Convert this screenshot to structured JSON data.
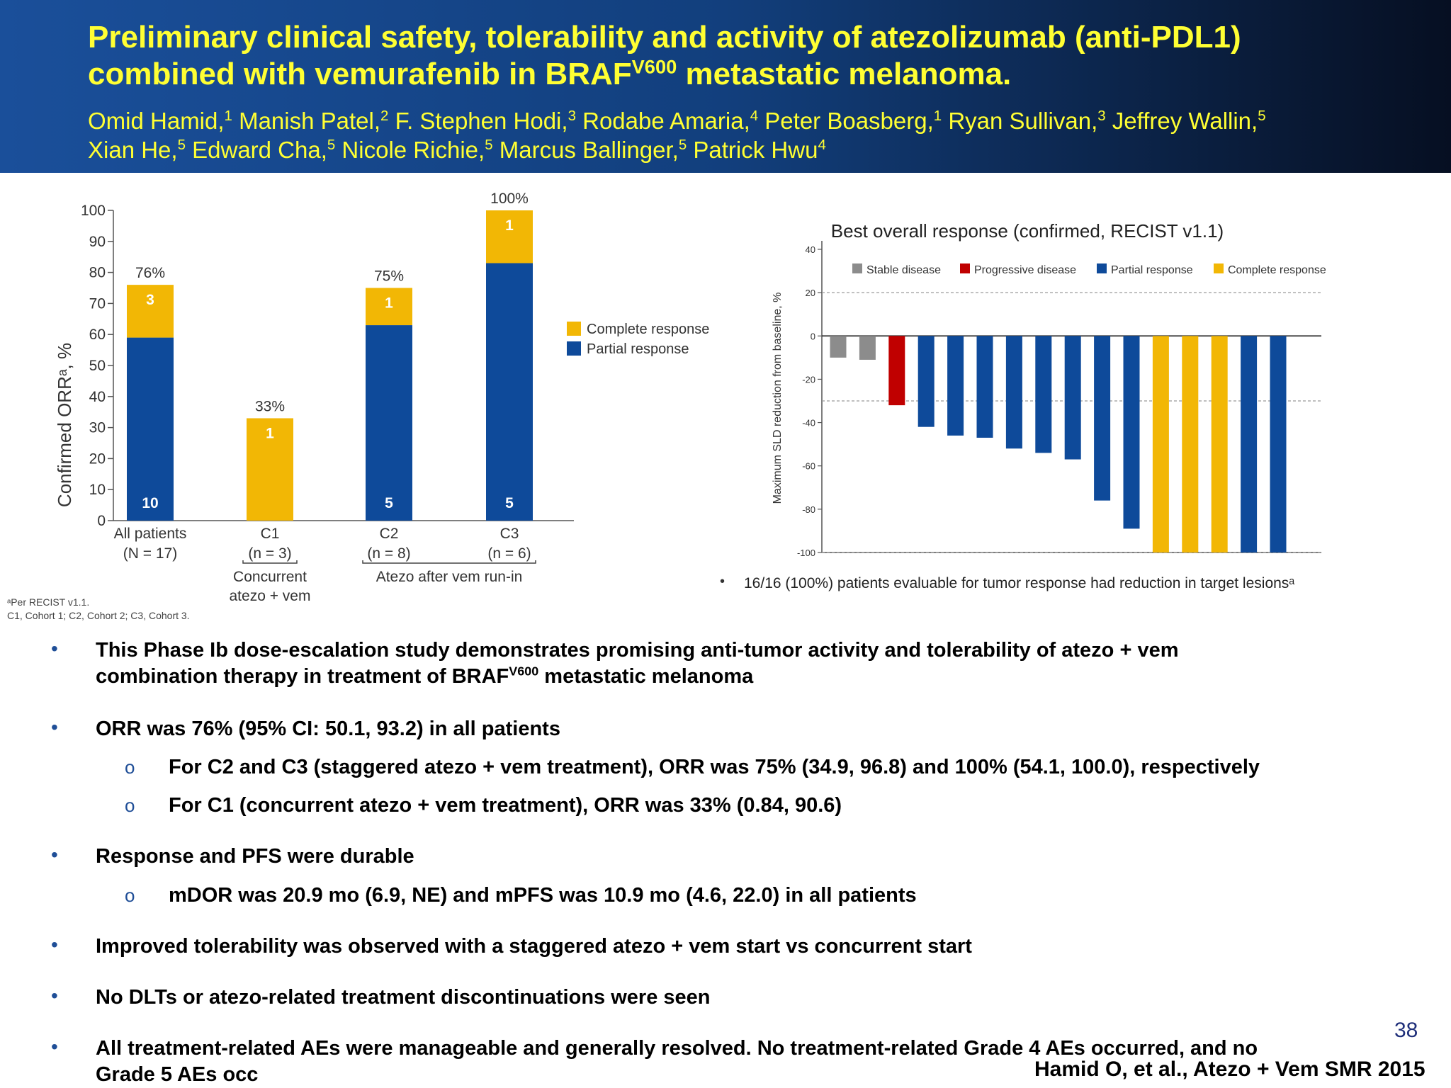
{
  "header": {
    "title_line1": "Preliminary clinical safety, tolerability  and activity of atezolizumab (anti-PDL1)",
    "title_line2_pre": "combined with vemurafenib in BRAF",
    "title_line2_sup": "V600",
    "title_line2_post": " metastatic melanoma.",
    "authors_line1": [
      {
        "name": "Omid Hamid,",
        "sup": "1"
      },
      {
        "name": " Manish Patel,",
        "sup": "2"
      },
      {
        "name": " F. Stephen Hodi,",
        "sup": "3"
      },
      {
        "name": " Rodabe Amaria,",
        "sup": "4"
      },
      {
        "name": " Peter Boasberg,",
        "sup": "1"
      },
      {
        "name": " Ryan Sullivan,",
        "sup": "3"
      },
      {
        "name": " Jeffrey Wallin,",
        "sup": "5"
      }
    ],
    "authors_line2": [
      {
        "name": "Xian He,",
        "sup": "5"
      },
      {
        "name": " Edward Cha,",
        "sup": "5"
      },
      {
        "name": " Nicole Richie,",
        "sup": "5"
      },
      {
        "name": " Marcus Ballinger,",
        "sup": "5"
      },
      {
        "name": " Patrick Hwu",
        "sup": "4"
      }
    ]
  },
  "chart_data": [
    {
      "type": "bar",
      "stacked": true,
      "ylabel": "Confirmed ORRᵃ, %",
      "ylim": [
        0,
        100
      ],
      "yticks": [
        0,
        10,
        20,
        30,
        40,
        50,
        60,
        70,
        80,
        90,
        100
      ],
      "categories": [
        "All patients",
        "C1",
        "C2",
        "C3"
      ],
      "category_sublabels": [
        "(N = 17)",
        "(n = 3)",
        "(n = 8)",
        "(n = 6)"
      ],
      "series": [
        {
          "name": "Partial response",
          "color": "#0e4a9a",
          "values": [
            59,
            0,
            63,
            83
          ],
          "counts": [
            "10",
            "",
            "5",
            "5"
          ]
        },
        {
          "name": "Complete response",
          "color": "#f2b705",
          "values": [
            17,
            33,
            12,
            17
          ],
          "counts": [
            "3",
            "1",
            "1",
            "1"
          ]
        }
      ],
      "totals": [
        "76%",
        "33%",
        "75%",
        "100%"
      ],
      "group_labels": [
        {
          "text_line1": "Concurrent",
          "text_line2": "atezo + vem",
          "covers": [
            "C1"
          ]
        },
        {
          "text_line1": "Atezo after vem run-in",
          "covers": [
            "C2",
            "C3"
          ]
        }
      ],
      "legend": [
        "Complete response",
        "Partial response"
      ],
      "footnote_line1": "ᵃPer RECIST v1.1.",
      "footnote_line2": "C1, Cohort 1; C2, Cohort 2; C3, Cohort 3."
    },
    {
      "type": "bar",
      "title": "Best overall response (confirmed, RECIST v1.1)",
      "ylabel": "Maximum SLD reduction from baseline, %",
      "ylim": [
        -100,
        40
      ],
      "yticks": [
        40,
        20,
        0,
        -20,
        -40,
        -60,
        -80,
        -100
      ],
      "reference_lines": [
        20,
        -30,
        -100
      ],
      "legend": [
        {
          "label": "Stable disease",
          "color": "#8c8c8c"
        },
        {
          "label": "Progressive disease",
          "color": "#c00000"
        },
        {
          "label": "Partial response",
          "color": "#0e4a9a"
        },
        {
          "label": "Complete response",
          "color": "#f2b705"
        }
      ],
      "patients": [
        {
          "value": -10,
          "response": "Stable disease"
        },
        {
          "value": -11,
          "response": "Stable disease"
        },
        {
          "value": -32,
          "response": "Progressive disease"
        },
        {
          "value": -42,
          "response": "Partial response"
        },
        {
          "value": -46,
          "response": "Partial response"
        },
        {
          "value": -47,
          "response": "Partial response"
        },
        {
          "value": -52,
          "response": "Partial response"
        },
        {
          "value": -54,
          "response": "Partial response"
        },
        {
          "value": -57,
          "response": "Partial response"
        },
        {
          "value": -76,
          "response": "Partial response"
        },
        {
          "value": -89,
          "response": "Partial response"
        },
        {
          "value": -100,
          "response": "Complete response"
        },
        {
          "value": -100,
          "response": "Complete response"
        },
        {
          "value": -100,
          "response": "Complete response"
        },
        {
          "value": -100,
          "response": "Partial response"
        },
        {
          "value": -100,
          "response": "Partial response"
        }
      ],
      "note": "16/16 (100%) patients evaluable for tumor response had reduction in target lesionsᵃ"
    }
  ],
  "bullets": {
    "b1_line1": "This Phase Ib dose-escalation study demonstrates promising anti-tumor activity and tolerability of atezo + vem",
    "b1_line2_pre": "combination therapy in treatment of BRAF",
    "b1_line2_sup": "V600",
    "b1_line2_post": " metastatic melanoma",
    "b2": "ORR was 76% (95% CI: 50.1, 93.2) in all patients",
    "b2_sub1": "For C2 and C3 (staggered atezo + vem treatment), ORR was 75% (34.9, 96.8) and 100% (54.1, 100.0), respectively",
    "b2_sub2": "For C1 (concurrent atezo + vem treatment), ORR was 33% (0.84, 90.6)",
    "b3": "Response and PFS were durable",
    "b3_sub1": "mDOR was 20.9 mo (6.9, NE) and mPFS was 10.9 mo (4.6, 22.0) in all patients",
    "b4": "Improved tolerability was observed with a staggered atezo + vem start vs concurrent start",
    "b5": "No DLTs or atezo-related treatment discontinuations were seen",
    "b6_line1": "All treatment-related AEs were manageable and generally resolved. No treatment-related Grade 4 AEs occurred, and no",
    "b6_line2": "Grade 5 AEs occ"
  },
  "bullet_symbols": {
    "main": "•",
    "sub": "o"
  },
  "footer": {
    "page_number": "38",
    "citation": "Hamid O, et al., Atezo + Vem SMR 2015"
  }
}
